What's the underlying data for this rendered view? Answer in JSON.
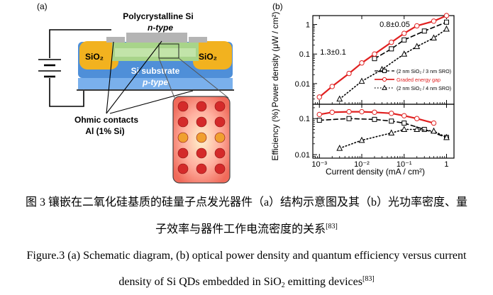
{
  "figure": {
    "panel_a": {
      "label": "(a)",
      "top_label_line1": "Polycrystalline Si",
      "top_label_line2": "n-type",
      "oxide_left": "SiO₂",
      "oxide_right": "SiO₂",
      "substrate_line1": "Si substrate",
      "substrate_line2": "p-type",
      "contacts_line1": "Ohmic contacts",
      "contacts_line2": "Al (1% Si)",
      "colors": {
        "oxide": "#f2b21f",
        "substrate": "#4f8fd8",
        "poly": "#a8d48a",
        "contact": "#b4b4b4",
        "qd": "#d42a2a"
      }
    },
    "panel_b": {
      "label": "(b)"
    }
  },
  "chart_data": [
    {
      "type": "line",
      "xlabel": "Current density (mA / cm²)",
      "ylabel": "Power density (μW / cm²)",
      "x_scale": "log",
      "y_scale": "log",
      "xlim": [
        0.0007,
        1.5
      ],
      "ylim": [
        0.002,
        2
      ],
      "x_ticks": [
        0.001,
        0.01,
        0.1,
        1
      ],
      "x_tick_labels": [
        "10⁻³",
        "10⁻²",
        "10⁻¹",
        "1"
      ],
      "y_ticks": [
        0.01,
        0.1,
        1
      ],
      "y_tick_labels": [
        "0.01",
        "0.1",
        "1"
      ],
      "annotations": [
        {
          "text": "1.3±0.1",
          "x": 0.0021,
          "y": 0.095
        },
        {
          "text": "0.8±0.05",
          "x": 0.06,
          "y": 0.82
        }
      ],
      "series": [
        {
          "name": "(2 nm SiO₂ / 3 nm SRO)",
          "style": "dashed",
          "marker": "square",
          "color": "#000000",
          "x": [
            0.02,
            0.05,
            0.1,
            0.3,
            1.0
          ],
          "y": [
            0.07,
            0.15,
            0.3,
            0.6,
            1.2
          ]
        },
        {
          "name": "Graded energy gap",
          "style": "solid",
          "marker": "circle",
          "color": "#e02020",
          "x": [
            0.001,
            0.002,
            0.005,
            0.01,
            0.02,
            0.05,
            0.1,
            0.2,
            0.5,
            1.0
          ],
          "y": [
            0.0035,
            0.008,
            0.022,
            0.05,
            0.1,
            0.25,
            0.5,
            0.9,
            1.3,
            2.0
          ]
        },
        {
          "name": "(2 nm SiO₂ / 4 nm SRO)",
          "style": "dotted",
          "marker": "triangle",
          "color": "#000000",
          "x": [
            0.003,
            0.01,
            0.03,
            0.1,
            0.2,
            0.5,
            1.0
          ],
          "y": [
            0.003,
            0.012,
            0.03,
            0.1,
            0.18,
            0.35,
            0.7
          ]
        }
      ]
    },
    {
      "type": "line",
      "xlabel": "Current density (mA / cm²)",
      "ylabel": "Efficiency (%)",
      "x_scale": "log",
      "y_scale": "log",
      "xlim": [
        0.0007,
        1.5
      ],
      "ylim": [
        0.008,
        0.25
      ],
      "x_ticks": [
        0.001,
        0.01,
        0.1,
        1
      ],
      "x_tick_labels": [
        "10⁻³",
        "10⁻²",
        "10⁻¹",
        "1"
      ],
      "y_ticks": [
        0.01,
        0.1
      ],
      "y_tick_labels": [
        "0.01",
        "0.1"
      ],
      "series": [
        {
          "name": "Graded energy gap",
          "style": "solid",
          "marker": "circle",
          "color": "#e02020",
          "x": [
            0.001,
            0.002,
            0.005,
            0.01,
            0.02,
            0.05,
            0.1,
            0.2,
            0.5
          ],
          "y": [
            0.13,
            0.15,
            0.155,
            0.155,
            0.15,
            0.14,
            0.12,
            0.1,
            0.075
          ]
        },
        {
          "name": "(2 nm SiO₂ / 3 nm SRO)",
          "style": "dashed",
          "marker": "square",
          "color": "#000000",
          "x": [
            0.001,
            0.005,
            0.02,
            0.05,
            0.1,
            0.3,
            1.0
          ],
          "y": [
            0.09,
            0.1,
            0.095,
            0.085,
            0.075,
            0.05,
            0.03
          ]
        },
        {
          "name": "(2 nm SiO₂ / 4 nm SRO)",
          "style": "dotted",
          "marker": "triangle",
          "color": "#000000",
          "x": [
            0.003,
            0.01,
            0.05,
            0.1,
            0.2,
            0.5,
            1.0
          ],
          "y": [
            0.015,
            0.025,
            0.04,
            0.05,
            0.05,
            0.045,
            0.03
          ]
        }
      ]
    }
  ],
  "caption": {
    "zh_line1": "图 3  镶嵌在二氧化硅基质的硅量子点发光器件（a）结构示意图及其（b）光功率密度、量",
    "zh_line2_text": "子效率与器件工作电流密度的关系",
    "zh_ref": "[83]",
    "en_line1": "Figure.3 (a) Schematic diagram, (b) optical power density and quantum efficiency versus current",
    "en_line2_before": "density of Si QDs embedded in SiO",
    "en_sub": "2",
    "en_line2_after": " emitting devices",
    "en_ref": "[83]"
  }
}
